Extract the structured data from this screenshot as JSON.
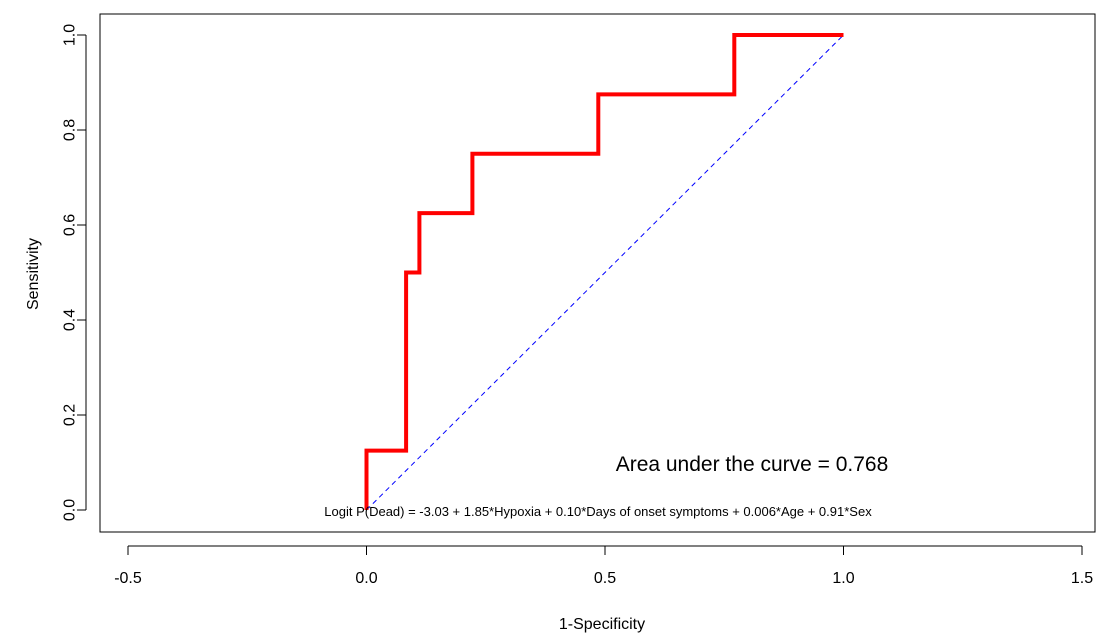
{
  "chart_data": {
    "type": "line",
    "xlabel": "1-Specificity",
    "ylabel": "Sensitivity",
    "xlim": [
      -0.5,
      1.5
    ],
    "ylim": [
      0.0,
      1.0
    ],
    "x_ticks": [
      "-0.5",
      "0.0",
      "0.5",
      "1.0",
      "1.5"
    ],
    "x_tick_values": [
      -0.5,
      0.0,
      0.5,
      1.0,
      1.5
    ],
    "y_ticks": [
      "0.0",
      "0.2",
      "0.4",
      "0.6",
      "0.8",
      "1.0"
    ],
    "y_tick_values": [
      0.0,
      0.2,
      0.4,
      0.6,
      0.8,
      1.0
    ],
    "grid": false,
    "series": [
      {
        "color": "#ff0000",
        "style": "step",
        "x": [
          0.0,
          0.0,
          0.083,
          0.083,
          0.111,
          0.111,
          0.222,
          0.222,
          0.486,
          0.486,
          0.771,
          0.771,
          1.0
        ],
        "y": [
          0.0,
          0.125,
          0.125,
          0.5,
          0.5,
          0.625,
          0.625,
          0.75,
          0.75,
          0.875,
          0.875,
          1.0,
          1.0
        ]
      },
      {
        "color": "#0000ff",
        "style": "dashed",
        "x": [
          0.0,
          1.0
        ],
        "y": [
          0.0,
          1.0
        ]
      }
    ],
    "annotations": {
      "auc": "Area under the curve = 0.768",
      "formula": "Logit P(Dead) = -3.03 + 1.85*Hypoxia + 0.10*Days of onset symptoms + 0.006*Age + 0.91*Sex"
    }
  }
}
